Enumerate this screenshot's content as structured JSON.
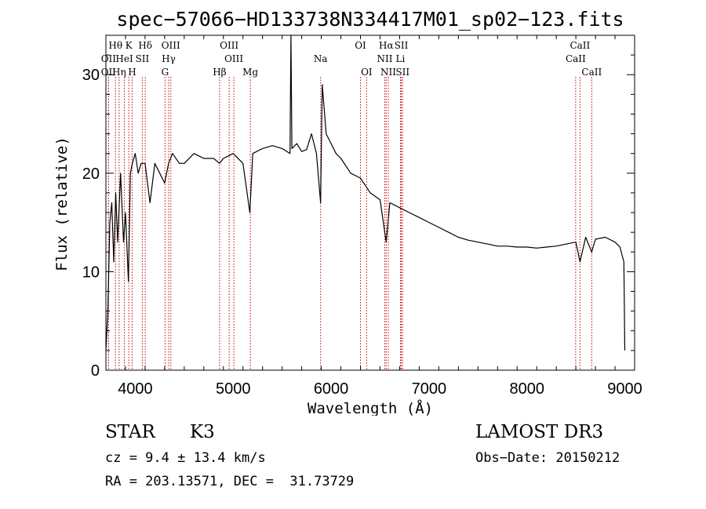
{
  "chart_data": {
    "type": "line",
    "title": "spec−57066−HD133738N334417M01_sp02−123.fits",
    "xlabel": "Wavelength (Å)",
    "ylabel": "Flux (relative)",
    "xlim": [
      3700,
      9100
    ],
    "ylim": [
      0,
      34
    ],
    "xticks": [
      4000,
      5000,
      6000,
      7000,
      8000,
      9000
    ],
    "yticks": [
      0,
      10,
      20,
      30
    ],
    "series": [
      {
        "name": "spectrum",
        "x": [
          3700,
          3720,
          3740,
          3760,
          3780,
          3800,
          3820,
          3850,
          3880,
          3900,
          3930,
          3950,
          3970,
          4000,
          4030,
          4060,
          4100,
          4150,
          4200,
          4250,
          4300,
          4340,
          4380,
          4450,
          4500,
          4600,
          4700,
          4800,
          4861,
          4900,
          5000,
          5100,
          5170,
          5200,
          5300,
          5400,
          5500,
          5580,
          5590,
          5600,
          5650,
          5700,
          5750,
          5800,
          5850,
          5893,
          5910,
          5950,
          6000,
          6050,
          6100,
          6200,
          6300,
          6400,
          6500,
          6563,
          6600,
          6700,
          6800,
          6900,
          7000,
          7100,
          7200,
          7300,
          7400,
          7500,
          7600,
          7700,
          7800,
          7900,
          8000,
          8100,
          8200,
          8300,
          8400,
          8500,
          8542,
          8600,
          8662,
          8700,
          8800,
          8900,
          8950,
          8990,
          9000
        ],
        "y": [
          2,
          6,
          15,
          17,
          11,
          18,
          13,
          20,
          13,
          16,
          9,
          20,
          21,
          22,
          20,
          21,
          21,
          17,
          21,
          20,
          19,
          21,
          22,
          21,
          21,
          22,
          21.5,
          21.5,
          21,
          21.5,
          22,
          21,
          16,
          22,
          22.5,
          22.8,
          22.5,
          22,
          34,
          22.5,
          23,
          22.2,
          22.4,
          24,
          22,
          17,
          29,
          24,
          23,
          22,
          21.5,
          20,
          19.5,
          18,
          17.3,
          13,
          17,
          16.5,
          16,
          15.5,
          15,
          14.5,
          14,
          13.5,
          13.2,
          13,
          12.8,
          12.6,
          12.6,
          12.5,
          12.5,
          12.4,
          12.5,
          12.6,
          12.8,
          13,
          11,
          13.5,
          12,
          13.3,
          13.5,
          13,
          12.5,
          11,
          2
        ]
      }
    ],
    "lines": [
      {
        "label": "Hθ",
        "wl": 3798,
        "row": 0
      },
      {
        "label": "K",
        "wl": 3934,
        "row": 0
      },
      {
        "label": "Hδ",
        "wl": 4102,
        "row": 0
      },
      {
        "label": "OIII",
        "wl": 4363,
        "row": 0
      },
      {
        "label": "OIII",
        "wl": 4959,
        "row": 0
      },
      {
        "label": "OI",
        "wl": 6300,
        "row": 0
      },
      {
        "label": "Hα",
        "wl": 6563,
        "row": 0
      },
      {
        "label": "SII",
        "wl": 6717,
        "row": 0
      },
      {
        "label": "CaII",
        "wl": 8542,
        "row": 0
      },
      {
        "label": "OII",
        "wl": 3727,
        "row": 1
      },
      {
        "label": "HeI",
        "wl": 3889,
        "row": 1
      },
      {
        "label": "SII",
        "wl": 4072,
        "row": 1
      },
      {
        "label": "Hγ",
        "wl": 4341,
        "row": 1
      },
      {
        "label": "OIII",
        "wl": 5007,
        "row": 1
      },
      {
        "label": "Na",
        "wl": 5893,
        "row": 1
      },
      {
        "label": "NII",
        "wl": 6548,
        "row": 1
      },
      {
        "label": "Li",
        "wl": 6708,
        "row": 1
      },
      {
        "label": "CaII",
        "wl": 8498,
        "row": 1
      },
      {
        "label": "OII",
        "wl": 3727,
        "row": 2
      },
      {
        "label": "Hη",
        "wl": 3835,
        "row": 2
      },
      {
        "label": "H",
        "wl": 3968,
        "row": 2
      },
      {
        "label": "G",
        "wl": 4304,
        "row": 2
      },
      {
        "label": "Hβ",
        "wl": 4861,
        "row": 2
      },
      {
        "label": "Mg",
        "wl": 5175,
        "row": 2
      },
      {
        "label": "OI",
        "wl": 6363,
        "row": 2
      },
      {
        "label": "NII",
        "wl": 6584,
        "row": 2
      },
      {
        "label": "SII",
        "wl": 6731,
        "row": 2
      },
      {
        "label": "CaII",
        "wl": 8662,
        "row": 2
      }
    ]
  },
  "info": {
    "object_class": "STAR",
    "subclass": "K3",
    "survey": "LAMOST DR3",
    "cz": "cz = 9.4 ± 13.4 km/s",
    "obs_date": "Obs−Date: 20150212",
    "coords": "RA = 203.13571, DEC =  31.73729"
  },
  "colors": {
    "line_marker": "#cc0000",
    "spectrum": "#000000"
  }
}
